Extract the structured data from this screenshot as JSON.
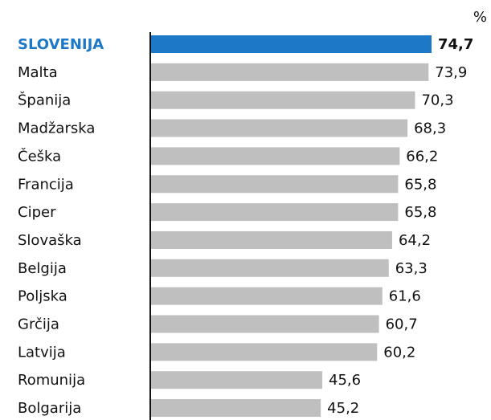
{
  "chart_data": {
    "type": "bar",
    "orientation": "horizontal",
    "unit": "%",
    "categories": [
      "SLOVENIJA",
      "Malta",
      "Španija",
      "Madžarska",
      "Češka",
      "Francija",
      "Ciper",
      "Slovaška",
      "Belgija",
      "Poljska",
      "Grčija",
      "Latvija",
      "Romunija",
      "Bolgarija"
    ],
    "values": [
      74.7,
      73.9,
      70.3,
      68.3,
      66.2,
      65.8,
      65.8,
      64.2,
      63.3,
      61.6,
      60.7,
      60.2,
      45.6,
      45.2
    ],
    "value_labels": [
      "74,7",
      "73,9",
      "70,3",
      "68,3",
      "66,2",
      "65,8",
      "65,8",
      "64,2",
      "63,3",
      "61,6",
      "60,7",
      "60,2",
      "45,6",
      "45,2"
    ],
    "color": "#bfbfbf",
    "highlight_color": "#1e78c8",
    "highlight_index": 0
  }
}
